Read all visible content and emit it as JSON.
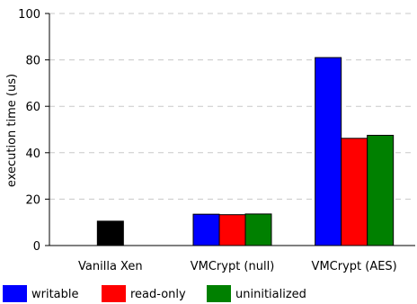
{
  "chart_data": {
    "type": "bar",
    "title": "",
    "xlabel": "",
    "ylabel": "execution time (us)",
    "ylim": [
      0,
      100
    ],
    "yticks": [
      0,
      20,
      40,
      60,
      80,
      100
    ],
    "grid": "horizontal dashed",
    "legend_position": "bottom",
    "categories": [
      "Vanilla Xen",
      "VMCrypt (null)",
      "VMCrypt (AES)"
    ],
    "series": [
      {
        "name": "writable",
        "color": "#0000ff",
        "values": [
          0,
          13.5,
          81
        ]
      },
      {
        "name": "read-only",
        "color": "#ff0000",
        "values": [
          0,
          13.3,
          46.2
        ]
      },
      {
        "name": "uninitialized",
        "color": "#008000",
        "values": [
          0,
          13.6,
          47.5
        ]
      }
    ],
    "extra_bars": [
      {
        "category": "Vanilla Xen",
        "color": "#000000",
        "value": 10.5
      }
    ]
  }
}
